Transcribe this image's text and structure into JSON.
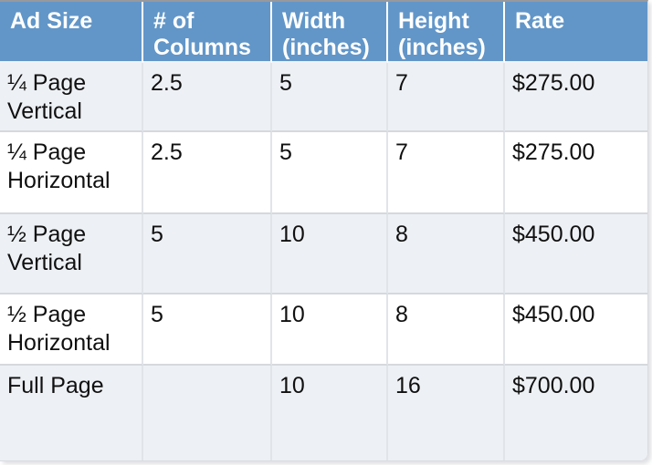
{
  "table": {
    "columns": [
      {
        "key": "ad_size",
        "label": "Ad Size"
      },
      {
        "key": "num_columns",
        "label": "# of Columns"
      },
      {
        "key": "width",
        "label": "Width (inches)"
      },
      {
        "key": "height",
        "label": "Height (inches)"
      },
      {
        "key": "rate",
        "label": "Rate"
      }
    ],
    "rows": [
      {
        "ad_size": "¼ Page Vertical",
        "num_columns": "2.5",
        "width": "5",
        "height": "7",
        "rate": "$275.00"
      },
      {
        "ad_size": "¼ Page Horizontal",
        "num_columns": "2.5",
        "width": "5",
        "height": "7",
        "rate": "$275.00"
      },
      {
        "ad_size": "½ Page Vertical",
        "num_columns": "5",
        "width": "10",
        "height": "8",
        "rate": "$450.00"
      },
      {
        "ad_size": "½ Page Horizontal",
        "num_columns": "5",
        "width": "10",
        "height": "8",
        "rate": "$450.00"
      },
      {
        "ad_size": "Full Page",
        "num_columns": "",
        "width": "10",
        "height": "16",
        "rate": "$700.00"
      }
    ]
  },
  "colors": {
    "header_bg": "#6296c8",
    "header_text": "#ffffff",
    "row_alt_bg": "#edf0f4",
    "row_bg": "#ffffff",
    "body_text": "#101010"
  }
}
